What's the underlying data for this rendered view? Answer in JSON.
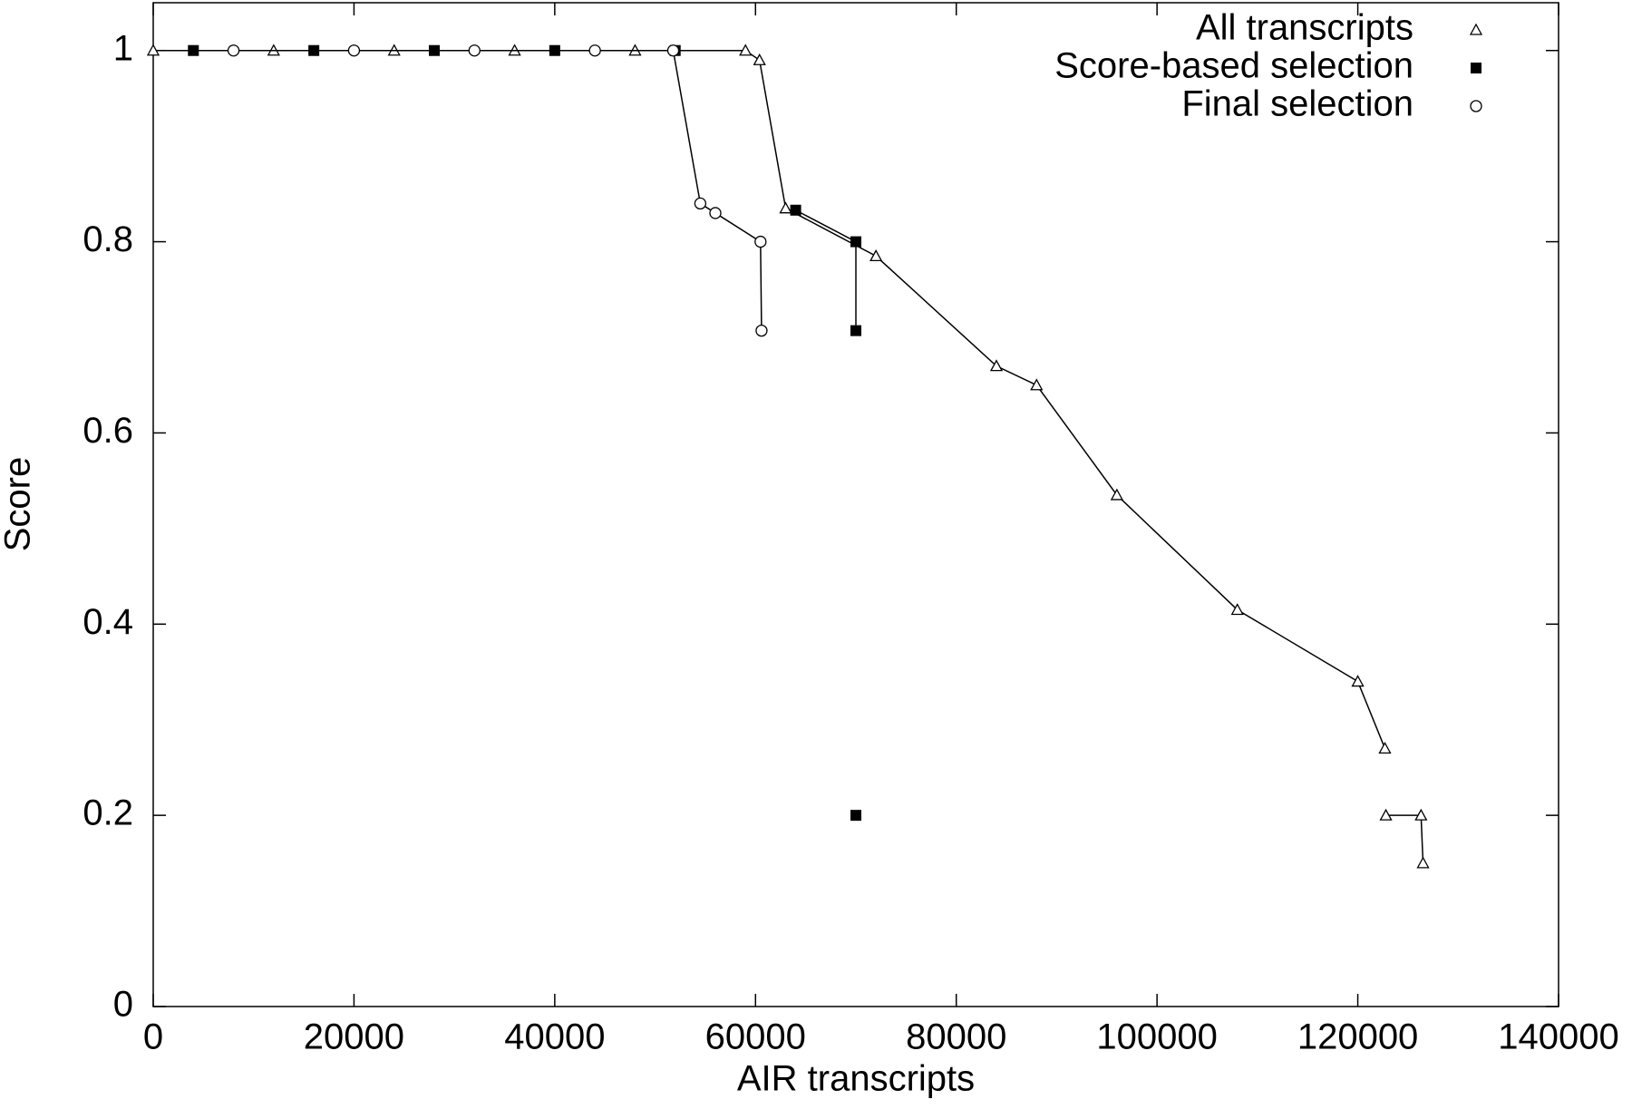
{
  "chart_data": {
    "type": "line",
    "x_label": "AIR transcripts",
    "y_label": "Score",
    "xlim": [
      0,
      140000
    ],
    "ylim": [
      0,
      1.05
    ],
    "xticks": [
      0,
      20000,
      40000,
      60000,
      80000,
      100000,
      120000,
      140000
    ],
    "yticks": [
      0,
      0.2,
      0.4,
      0.6,
      0.8,
      1
    ],
    "legend": "upper right",
    "series": [
      {
        "name": "All transcripts",
        "color": "#000000",
        "marker": "triangle",
        "x": [
          0,
          12000,
          24000,
          36000,
          48000,
          59000,
          60400,
          63000,
          72000,
          84000,
          88000,
          96000,
          108000,
          120000,
          122700,
          null,
          122800,
          126300,
          126500
        ],
        "values": [
          1,
          1,
          1,
          1,
          1,
          1,
          0.99,
          0.835,
          0.785,
          0.67,
          0.65,
          0.535,
          0.415,
          0.34,
          0.27,
          null,
          0.2,
          0.2,
          0.15
        ]
      },
      {
        "name": "Score-based selection",
        "color": "#000000",
        "marker": "square",
        "x": [
          4000,
          16000,
          28000,
          40000,
          52000,
          null,
          64000,
          70000,
          70000,
          null,
          70000
        ],
        "values": [
          1,
          1,
          1,
          1,
          1,
          null,
          0.833,
          0.8,
          0.707,
          null,
          0.2
        ]
      },
      {
        "name": "Final selection",
        "color": "#000000",
        "marker": "circle",
        "x": [
          8000,
          20000,
          32000,
          44000,
          51800,
          54500,
          56000,
          60500,
          60600
        ],
        "values": [
          1,
          1,
          1,
          1,
          1,
          0.84,
          0.83,
          0.8,
          0.707
        ]
      }
    ]
  }
}
